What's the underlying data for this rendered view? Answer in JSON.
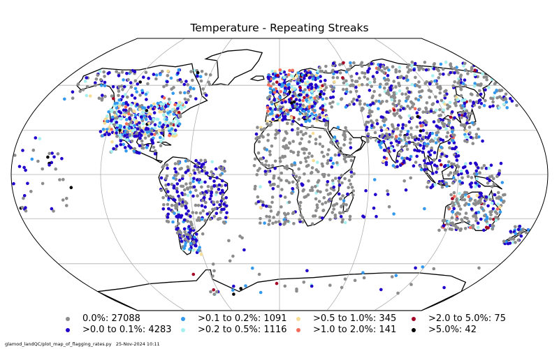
{
  "title": "Temperature - Repeating Streaks",
  "colors": {
    "land_fill": "#ffffff",
    "coast": "#000000",
    "gridline": "#b0b0b0",
    "background": "#ffffff"
  },
  "legend": [
    {
      "label": "0.0%: 27088",
      "color": "#8c8c8c"
    },
    {
      "label": ">0.0 to 0.1%: 4283",
      "color": "#2200cc"
    },
    {
      "label": ">0.1 to 0.2%: 1091",
      "color": "#3399ee"
    },
    {
      "label": ">0.2 to 0.5%: 1116",
      "color": "#a6f0f0"
    },
    {
      "label": ">0.5 to 1.0%: 345",
      "color": "#f7dc95"
    },
    {
      "label": ">1.0 to 2.0%: 141",
      "color": "#f46d5a"
    },
    {
      "label": ">2.0 to 5.0%: 75",
      "color": "#a50026"
    },
    {
      "label": ">5.0%: 42",
      "color": "#000000"
    }
  ],
  "footer": "glamod_landQC/plot_map_of_flagging_rates.py   25-Nov-2024 10:11"
}
